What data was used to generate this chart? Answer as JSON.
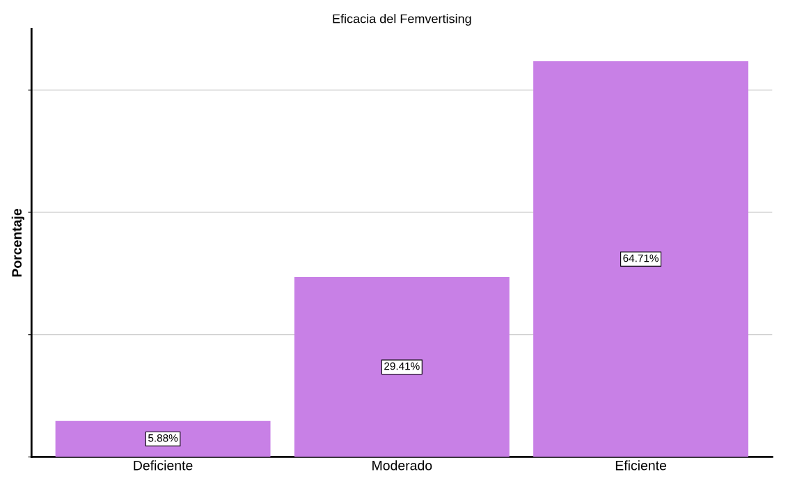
{
  "chart_data": {
    "type": "bar",
    "title": "Eficacia del Femvertising",
    "ylabel": "Porcentaje",
    "categories": [
      "Deficiente",
      "Moderado",
      "Eficiente"
    ],
    "values": [
      5.88,
      29.41,
      64.71
    ],
    "value_labels": [
      "5.88%",
      "29.41%",
      "64.71%"
    ],
    "color": "#c880e6",
    "ylim": [
      0,
      70
    ],
    "yticks": [
      {
        "value": 0,
        "label": null
      },
      {
        "value": 20,
        "label": null
      },
      {
        "value": 40,
        "label": null
      },
      {
        "value": 60,
        "label": null
      }
    ],
    "grid": "y",
    "tick_labels": "x"
  }
}
